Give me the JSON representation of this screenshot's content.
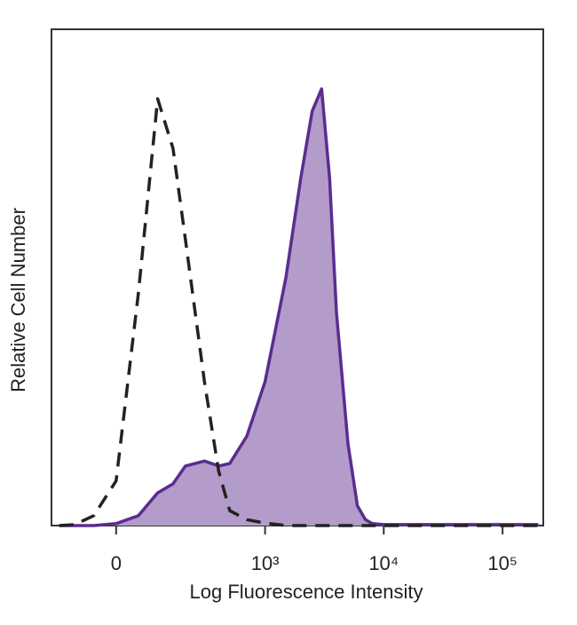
{
  "chart_data": {
    "type": "area",
    "xlabel": "Log Fluorescence Intensity",
    "ylabel": "Relative Cell Number",
    "xscale": "biexponential",
    "xlim": [
      -180,
      220000
    ],
    "ylim": [
      0,
      100
    ],
    "xticks": [
      0,
      {
        "value": 1000,
        "label": "10³"
      },
      {
        "value": 10000,
        "label": "10⁴"
      },
      {
        "value": 100000,
        "label": "10⁵"
      }
    ],
    "x": [
      -150,
      -100,
      -50,
      0,
      50,
      100,
      150,
      200,
      300,
      400,
      500,
      700,
      1000,
      1500,
      2000,
      2500,
      3000,
      3500,
      4000,
      5000,
      6000,
      7000,
      8000,
      10000,
      20000,
      50000,
      100000,
      200000
    ],
    "series": [
      {
        "color": "#5b2c91",
        "fill": "#b39cc9",
        "style": "solid",
        "values": [
          0,
          0,
          0,
          0.4,
          2,
          6.6,
          8.4,
          12,
          13,
          12,
          12.5,
          18,
          29,
          50,
          70,
          83.5,
          88,
          70,
          43,
          16.5,
          4,
          1.2,
          0.4,
          0.2,
          0.2,
          0.2,
          0.2,
          0.2
        ]
      },
      {
        "color": "#222222",
        "style": "dashed",
        "values": [
          0,
          0.2,
          2,
          9,
          47,
          86,
          76,
          57.6,
          29,
          11,
          3,
          1.2,
          0.5,
          0,
          0,
          0,
          0,
          0,
          0,
          0,
          0,
          0,
          0,
          0,
          0,
          0,
          0,
          0
        ]
      }
    ]
  }
}
